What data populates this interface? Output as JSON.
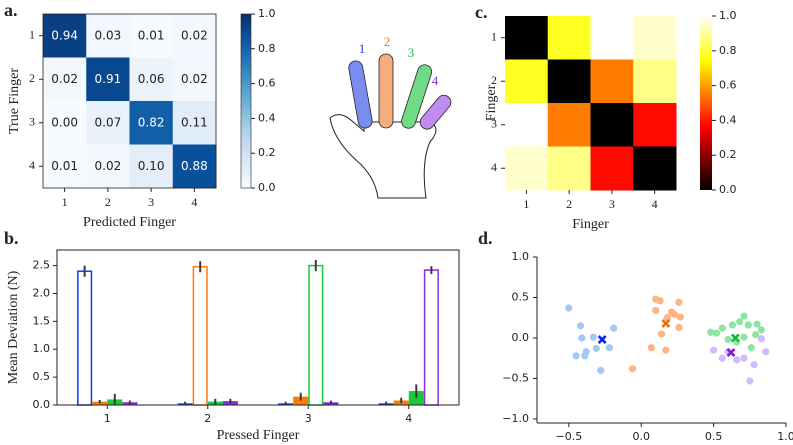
{
  "chart_data": [
    {
      "type": "heatmap",
      "panel": "a.",
      "xlabel": "Predicted Finger",
      "ylabel": "True Finger",
      "x_categories": [
        "1",
        "2",
        "3",
        "4"
      ],
      "y_categories": [
        "1",
        "2",
        "3",
        "4"
      ],
      "values": [
        [
          0.94,
          0.03,
          0.01,
          0.02
        ],
        [
          0.02,
          0.91,
          0.06,
          0.02
        ],
        [
          0.0,
          0.07,
          0.82,
          0.11
        ],
        [
          0.01,
          0.02,
          0.1,
          0.88
        ]
      ],
      "value_labels": [
        [
          "0.94",
          "0.03",
          "0.01",
          "0.02"
        ],
        [
          "0.02",
          "0.91",
          "0.06",
          "0.02"
        ],
        [
          "0.00",
          "0.07",
          "0.82",
          "0.11"
        ],
        [
          "0.01",
          "0.02",
          "0.10",
          "0.88"
        ]
      ],
      "colormap": "Blues",
      "clim": [
        0,
        1
      ],
      "cticks": [
        {
          "value": 0,
          "label": "0.0"
        },
        0.2,
        0.4,
        0.6,
        0.8,
        {
          "value": 1,
          "label": "1.0"
        }
      ]
    },
    {
      "type": "heatmap",
      "panel": "c.",
      "xlabel": "Finger",
      "ylabel": "Finger",
      "x_categories": [
        "1",
        "2",
        "3",
        "4"
      ],
      "y_categories": [
        "1",
        "2",
        "3",
        "4"
      ],
      "values": [
        [
          0,
          0.78,
          1.0,
          0.95
        ],
        [
          0.78,
          0,
          0.55,
          0.88
        ],
        [
          1.0,
          0.55,
          0,
          0.38
        ],
        [
          0.95,
          0.88,
          0.38,
          0
        ]
      ],
      "colormap": "hot",
      "clim": [
        0,
        1
      ],
      "cticks": [
        {
          "value": 0,
          "label": "0.0"
        },
        0.2,
        0.4,
        0.6,
        0.8,
        {
          "value": 1,
          "label": "1.0"
        }
      ]
    },
    {
      "type": "bar",
      "panel": "b.",
      "xlabel": "Pressed Finger",
      "ylabel": "Mean Deviation (N)",
      "categories": [
        "1",
        "2",
        "3",
        "4"
      ],
      "series": [
        {
          "color": "#023eff",
          "values": [
            2.4,
            0.03,
            0.03,
            0.03
          ],
          "errors": [
            0.1,
            0.03,
            0.03,
            0.03
          ]
        },
        {
          "color": "#ff7c00",
          "values": [
            0.06,
            2.48,
            0.15,
            0.08
          ],
          "errors": [
            0.03,
            0.1,
            0.07,
            0.05
          ]
        },
        {
          "color": "#1ac938",
          "values": [
            0.1,
            0.06,
            2.5,
            0.25
          ],
          "errors": [
            0.1,
            0.05,
            0.1,
            0.12
          ]
        },
        {
          "color": "#8b2be2",
          "values": [
            0.05,
            0.07,
            0.05,
            2.42
          ],
          "errors": [
            0.03,
            0.04,
            0.03,
            0.07
          ]
        }
      ],
      "ylim": [
        0,
        2.78
      ],
      "yticks": [
        {
          "value": 0,
          "label": "0.0"
        },
        0.5,
        {
          "value": 1,
          "label": "1.0"
        },
        1.5,
        {
          "value": 2,
          "label": "2.0"
        },
        2.5
      ]
    },
    {
      "type": "scatter",
      "panel": "d.",
      "series": [
        {
          "color": "#a1c9f4",
          "x": [
            -0.5,
            -0.42,
            -0.41,
            -0.33,
            -0.38,
            -0.45,
            -0.39,
            -0.31,
            -0.22,
            -0.28,
            -0.19
          ],
          "y": [
            0.37,
            0.15,
            0.0,
            0.01,
            -0.17,
            -0.22,
            -0.22,
            -0.13,
            -0.12,
            -0.4,
            0.12
          ],
          "mean": {
            "x": -0.27,
            "y": -0.02,
            "color": "#0a23f0"
          }
        },
        {
          "color": "#ffb482",
          "x": [
            0.1,
            0.13,
            0.21,
            0.26,
            0.18,
            0.23,
            0.27,
            0.26,
            0.14,
            0.07,
            0.17,
            -0.06,
            0.1
          ],
          "y": [
            0.48,
            0.46,
            0.32,
            0.44,
            0.25,
            0.29,
            0.26,
            0.13,
            0.05,
            -0.12,
            -0.15,
            -0.38,
            0.34
          ],
          "mean": {
            "x": 0.17,
            "y": 0.18,
            "color": "#e8700a"
          }
        },
        {
          "color": "#8de5a1",
          "x": [
            0.48,
            0.52,
            0.56,
            0.63,
            0.68,
            0.74,
            0.8,
            0.83,
            0.79,
            0.71,
            0.66,
            0.76,
            0.6,
            0.71
          ],
          "y": [
            0.07,
            0.06,
            0.12,
            0.16,
            0.2,
            0.16,
            0.17,
            0.1,
            0.04,
            0.01,
            -0.05,
            -0.12,
            -0.02,
            0.27
          ],
          "mean": {
            "x": 0.65,
            "y": 0.0,
            "color": "#17b82f"
          }
        },
        {
          "color": "#d0bbff",
          "x": [
            0.5,
            0.56,
            0.66,
            0.71,
            0.83,
            0.86,
            0.78,
            0.75,
            0.6
          ],
          "y": [
            -0.15,
            -0.25,
            -0.27,
            -0.25,
            -0.01,
            -0.17,
            -0.33,
            -0.53,
            -0.17
          ],
          "mean": {
            "x": 0.62,
            "y": -0.18,
            "color": "#8b16d8"
          }
        }
      ],
      "xlim": [
        -0.72,
        1.0
      ],
      "ylim": [
        -1.05,
        1.0
      ],
      "xticks": [
        {
          "value": -0.5,
          "label": "−0.5"
        },
        {
          "value": 0,
          "label": "0.0"
        },
        0.5,
        {
          "value": 1,
          "label": "1.0"
        }
      ],
      "yticks": [
        {
          "value": -1,
          "label": "−1.0"
        },
        {
          "value": -0.5,
          "label": "−0.5"
        },
        {
          "value": 0,
          "label": "0.0"
        },
        0.5,
        {
          "value": 1,
          "label": "1.0"
        }
      ]
    }
  ],
  "hand": {
    "finger_labels": [
      "1",
      "2",
      "3",
      "4"
    ],
    "colors": [
      "#7b8cf0",
      "#f5ad7d",
      "#6fdb87",
      "#c08cf0"
    ],
    "label_colors": [
      "#2a3fe0",
      "#ef7d1f",
      "#22b84a",
      "#8a2be2"
    ]
  }
}
